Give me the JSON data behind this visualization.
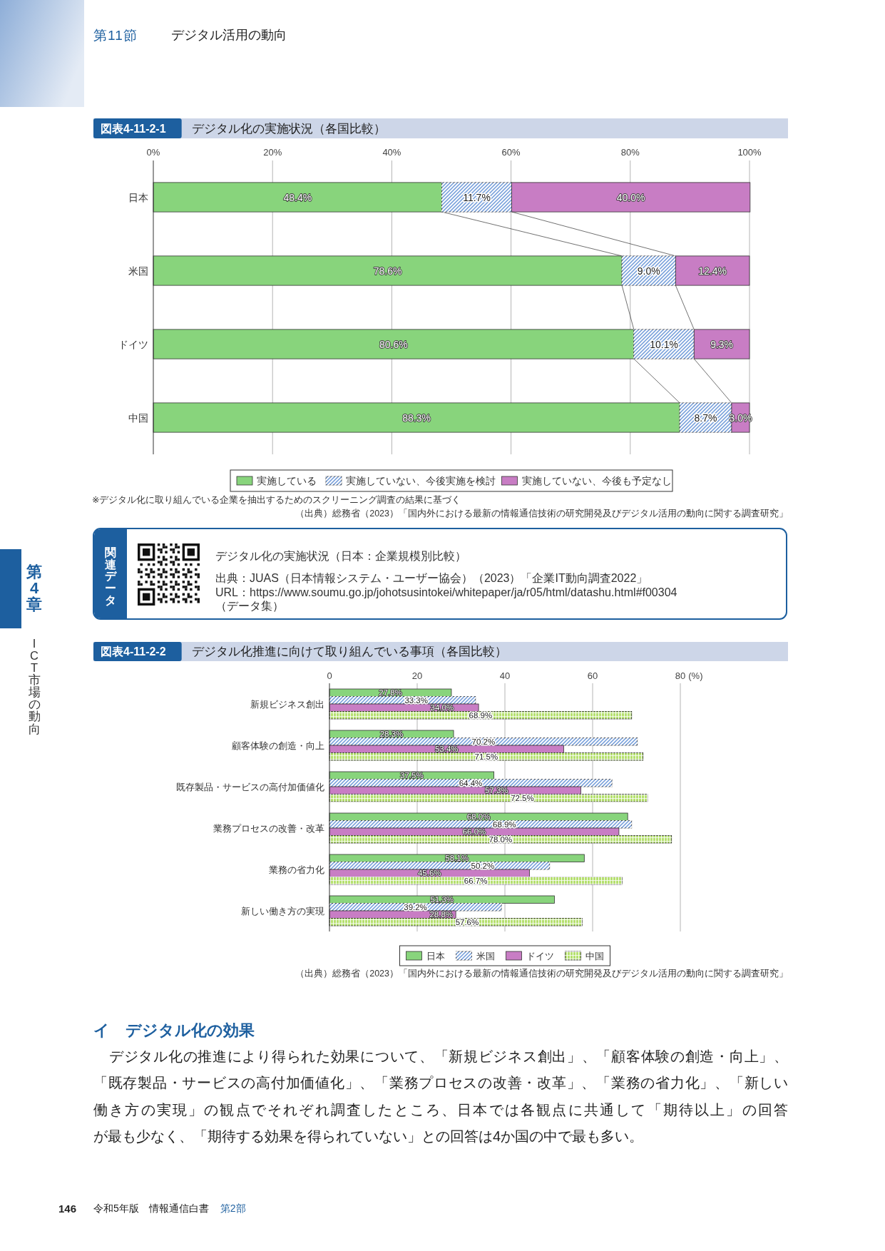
{
  "chart_data": [
    {
      "type": "other",
      "title": "デジタル活用の動向",
      "annotations": [
        "第11節",
        "第4章",
        "ICT市場の動向"
      ]
    },
    {
      "type": "bar",
      "orientation": "horizontal",
      "stacked": true,
      "title": "デジタル化の実施状況（各国比較）",
      "categories": [
        "日本",
        "米国",
        "ドイツ",
        "中国"
      ],
      "series": [
        {
          "name": "実施している",
          "color": "#88d47c",
          "values": [
            48.4,
            78.6,
            80.6,
            88.3
          ],
          "value_labels": [
            "48.4%",
            "78.6%",
            "80.6%",
            "88.3%"
          ]
        },
        {
          "name": "実施していない、今後実施を検討",
          "color": "#7ea6de",
          "values": [
            11.7,
            9.0,
            10.1,
            8.7
          ],
          "value_labels": [
            "11.7%",
            "9.0%",
            "10.1%",
            "8.7%"
          ]
        },
        {
          "name": "実施していない、今後も予定なし",
          "color": "#c87dc4",
          "values": [
            40.0,
            12.4,
            9.3,
            3.0
          ],
          "value_labels": [
            "40.0%",
            "12.4%",
            "9.3%",
            "3.0%"
          ]
        }
      ],
      "xlim": [
        0,
        100
      ],
      "xticks": [
        {
          "value": 0,
          "label": "0%"
        },
        {
          "value": 20,
          "label": "20%"
        },
        {
          "value": 40,
          "label": "40%"
        },
        {
          "value": 60,
          "label": "60%"
        },
        {
          "value": 80,
          "label": "80%"
        },
        {
          "value": 100,
          "label": "100%"
        }
      ],
      "grid": "x",
      "legend": "bottom",
      "annotations": [
        "図表4-11-2-1",
        "※デジタル化に取り組んでいる企業を抽出するためのスクリーニング調査の結果に基づく",
        "（出典）総務省（2023）「国内外における最新の情報通信技術の研究開発及びデジタル活用の動向に関する調査研究」"
      ]
    },
    {
      "type": "other",
      "title": "デジタル化の実施状況（日本：企業規模別比較）",
      "annotations": [
        "関連データ",
        "出典：JUAS（日本情報システム・ユーザー協会）（2023）「企業IT動向調査2022」",
        "URL：https://www.soumu.go.jp/johotsusintokei/whitepaper/ja/r05/html/datashu.html#f00304",
        "（データ集）"
      ]
    },
    {
      "type": "bar",
      "orientation": "horizontal",
      "title": "デジタル化推進に向けて取り組んでいる事項（各国比較）",
      "xlabel": "(%)",
      "categories": [
        "新規ビジネス創出",
        "顧客体験の創造・向上",
        "既存製品・サービスの高付加価値化",
        "業務プロセスの改善・改革",
        "業務の省力化",
        "新しい働き方の実現"
      ],
      "series": [
        {
          "name": "日本",
          "color": "#88d47c",
          "values": [
            27.8,
            28.3,
            37.5,
            68.0,
            58.1,
            51.3
          ],
          "value_labels": [
            "27.8%",
            "28.3%",
            "37.5%",
            "68.0%",
            "58.1%",
            "51.3%"
          ]
        },
        {
          "name": "米国",
          "color": "#7ea6de",
          "values": [
            33.3,
            70.2,
            64.4,
            68.9,
            50.2,
            39.2
          ],
          "value_labels": [
            "33.3%",
            "70.2%",
            "64.4%",
            "68.9%",
            "50.2%",
            "39.2%"
          ]
        },
        {
          "name": "ドイツ",
          "color": "#c87dc4",
          "values": [
            34.0,
            53.4,
            57.3,
            66.0,
            45.6,
            28.8
          ],
          "value_labels": [
            "34.0%",
            "53.4%",
            "57.3%",
            "66.0%",
            "45.6%",
            "28.8%"
          ]
        },
        {
          "name": "中国",
          "color": "#b5e06e",
          "values": [
            68.9,
            71.5,
            72.5,
            78.0,
            66.7,
            57.6
          ],
          "value_labels": [
            "68.9%",
            "71.5%",
            "72.5%",
            "78.0%",
            "66.7%",
            "57.6%"
          ]
        }
      ],
      "xlim": [
        0,
        80
      ],
      "xticks": [
        0,
        20,
        40,
        60,
        80
      ],
      "grid": "x",
      "legend": "bottom",
      "annotations": [
        "図表4-11-2-2",
        "（出典）総務省（2023）「国内外における最新の情報通信技術の研究開発及びデジタル活用の動向に関する調査研究」"
      ]
    },
    {
      "type": "other",
      "title": "イ　デジタル化の効果",
      "annotations": [
        "デジタル化の推進により得られた効果について、「新規ビジネス創出」、「顧客体験の創造・向上」、",
        "「既存製品・サービスの高付加価値化」、「業務プロセスの改善・改革」、「業務の省力化」、「新しい",
        "働き方の実現」の観点でそれぞれ調査したところ、日本では各観点に共通して「期待以上」の回答",
        "が最も少なく、「期待する効果を得られていない」との回答は4か国の中で最も多い。",
        "146",
        "令和5年版　情報通信白書",
        "第2部"
      ]
    }
  ]
}
